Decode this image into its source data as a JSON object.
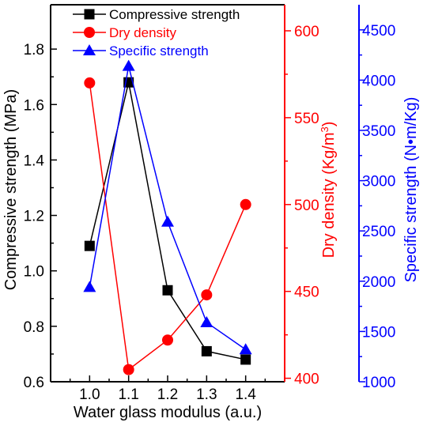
{
  "chart_data": {
    "type": "line",
    "xlabel": "Water glass modulus (a.u.)",
    "x": [
      1.0,
      1.1,
      1.2,
      1.3,
      1.4
    ],
    "x_ticks": [
      "1.0",
      "1.1",
      "1.2",
      "1.3",
      "1.4"
    ],
    "xlim": [
      0.9,
      1.5
    ],
    "grid": false,
    "legend_position": "top",
    "axes": {
      "left": {
        "label": "Compressive strength (MPa)",
        "ylim": [
          0.6,
          1.96
        ],
        "ticks": [
          0.6,
          0.8,
          1.0,
          1.2,
          1.4,
          1.6,
          1.8
        ],
        "tick_labels": [
          "0.6",
          "0.8",
          "1.0",
          "1.2",
          "1.4",
          "1.6",
          "1.8"
        ],
        "color": "#000000"
      },
      "right_inner": {
        "label_prefix": "Dry density (Kg/m",
        "label_superscript": "3",
        "label_suffix": ")",
        "ylim": [
          398,
          615
        ],
        "ticks": [
          400,
          450,
          500,
          550,
          600
        ],
        "tick_labels": [
          "400",
          "450",
          "500",
          "550",
          "600"
        ],
        "color": "#ff0000"
      },
      "right_outer": {
        "label": "Specific strength (N•m/Kg)",
        "ylim": [
          1000,
          4750
        ],
        "ticks": [
          1000,
          1500,
          2000,
          2500,
          3000,
          3500,
          4000,
          4500
        ],
        "tick_labels": [
          "1000",
          "1500",
          "2000",
          "2500",
          "3000",
          "3500",
          "4000",
          "4500"
        ],
        "color": "#0000ff"
      }
    },
    "series": [
      {
        "name": "Compressive strength",
        "axis": "left",
        "values": [
          1.09,
          1.68,
          0.93,
          0.71,
          0.68
        ],
        "color": "#000000",
        "marker": "square"
      },
      {
        "name": "Dry density",
        "axis": "right_inner",
        "values": [
          570,
          405,
          422,
          448,
          500
        ],
        "color": "#ff0000",
        "marker": "circle"
      },
      {
        "name": "Specific strength",
        "axis": "right_outer",
        "values": [
          1940,
          4140,
          2590,
          1590,
          1320
        ],
        "color": "#0000ff",
        "marker": "triangle"
      }
    ]
  }
}
